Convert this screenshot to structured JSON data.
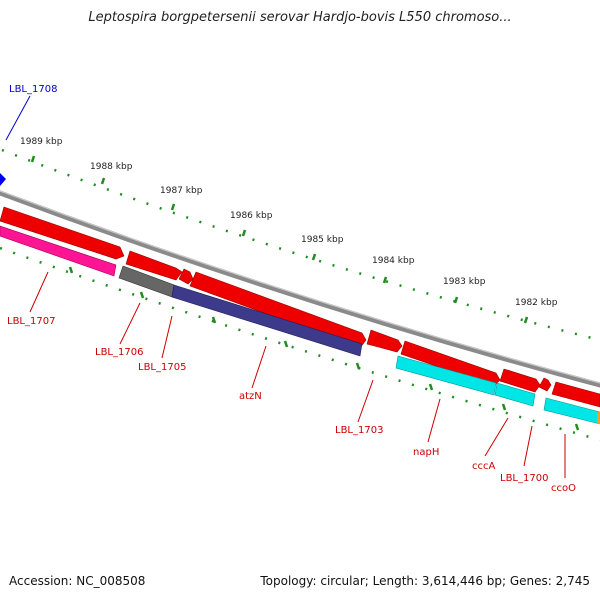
{
  "title": "Leptospira borgpetersenii serovar Hardjo-bovis L550 chromoso...",
  "footer": {
    "accession": "Accession: NC_008508",
    "summary": "Topology: circular; Length: 3,614,446 bp; Genes: 2,745"
  },
  "scale_labels": [
    "1989 kbp",
    "1988 kbp",
    "1987 kbp",
    "1986 kbp",
    "1985 kbp",
    "1984 kbp",
    "1983 kbp",
    "1982 kbp"
  ],
  "gene_labels": {
    "LBL_1708": "LBL_1708",
    "LBL_1707": "LBL_1707",
    "LBL_1706": "LBL_1706",
    "LBL_1705": "LBL_1705",
    "atzN": "atzN",
    "LBL_1703": "LBL_1703",
    "napH": "napH",
    "cccA": "cccA",
    "LBL_1700": "LBL_1700",
    "ccoO": "ccoO"
  },
  "colors": {
    "backbone": "#8a8a8a",
    "forward_gene": "#ee0000",
    "magenta_gene": "#ff1493",
    "gray_gene": "#666666",
    "navy_gene": "#3d3a8c",
    "cyan_gene": "#00e5e5",
    "blue_gene": "#0000ee",
    "tick": "#228b22",
    "label_red": "#cc0000",
    "label_blue": "#0000cc"
  }
}
